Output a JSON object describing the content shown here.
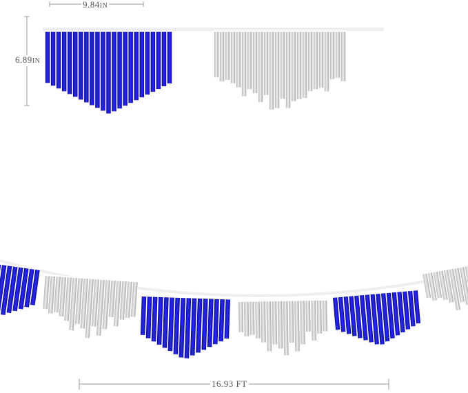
{
  "dimensions": {
    "width": {
      "value": "9.84",
      "unit": "IN"
    },
    "height": {
      "value": "6.89",
      "unit": "IN"
    },
    "length": {
      "value": "16.93 FT"
    }
  },
  "colors": {
    "blue": "#1a1ad6",
    "blue_dark": "#0a0a8a",
    "silver": "#d0d0d0",
    "silver_dark": "#9a9a9a",
    "dimension_line": "#999999"
  },
  "pennant_sequence": [
    "blue",
    "silver",
    "blue",
    "silver",
    "blue",
    "silver"
  ]
}
